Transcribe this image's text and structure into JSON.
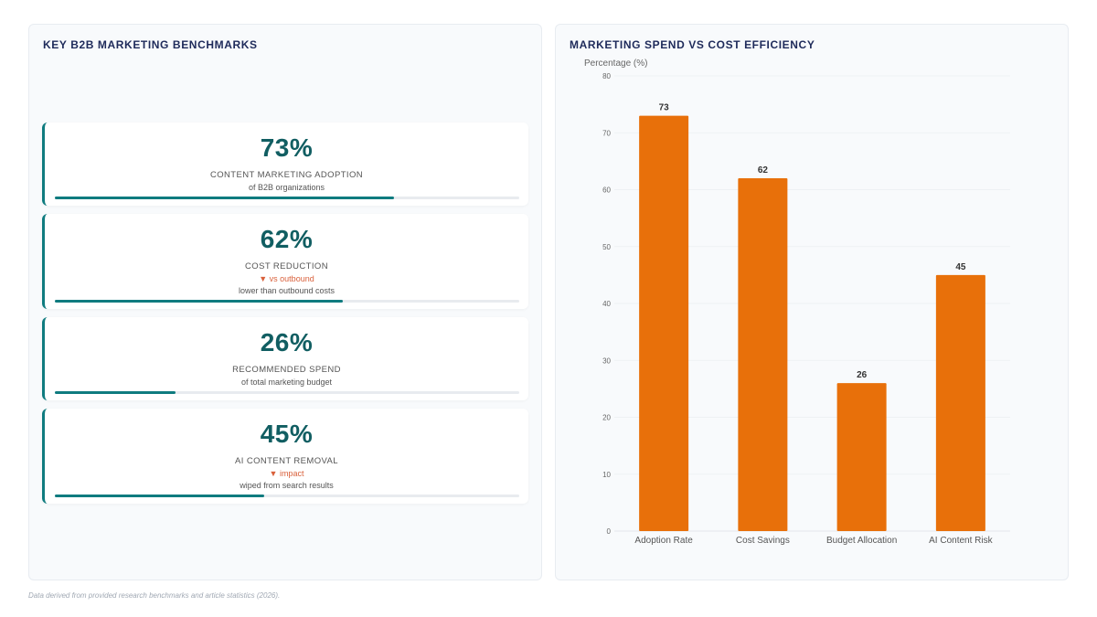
{
  "left_panel": {
    "title": "KEY B2B MARKETING BENCHMARKS",
    "cards": [
      {
        "value": "73%",
        "label": "CONTENT MARKETING ADOPTION",
        "delta": "",
        "sub": "of B2B organizations",
        "progress": 0.73
      },
      {
        "value": "62%",
        "label": "COST REDUCTION",
        "delta": "▼ vs outbound",
        "sub": "lower than outbound costs",
        "progress": 0.62
      },
      {
        "value": "26%",
        "label": "RECOMMENDED SPEND",
        "delta": "",
        "sub": "of total marketing budget",
        "progress": 0.26
      },
      {
        "value": "45%",
        "label": "AI CONTENT REMOVAL",
        "delta": "▼ impact",
        "sub": "wiped from search results",
        "progress": 0.45
      }
    ]
  },
  "right_panel": {
    "title": "MARKETING SPEND VS COST EFFICIENCY"
  },
  "colors": {
    "bar": "#e8700a",
    "accent": "#0f7b7f",
    "title": "#1e2a5a",
    "delta": "#d9603b"
  },
  "chart_data": {
    "type": "bar",
    "title": "MARKETING SPEND VS COST EFFICIENCY",
    "ylabel": "Percentage (%)",
    "xlabel": "",
    "categories": [
      "Adoption Rate",
      "Cost Savings",
      "Budget Allocation",
      "AI Content Risk"
    ],
    "values": [
      73,
      62,
      26,
      45
    ],
    "ylim": [
      0,
      80
    ],
    "yticks": [
      0,
      10,
      20,
      30,
      40,
      50,
      60,
      70,
      80
    ],
    "grid": true,
    "legend": "none"
  },
  "footnote": "Data derived from provided research benchmarks and article statistics (2026)."
}
